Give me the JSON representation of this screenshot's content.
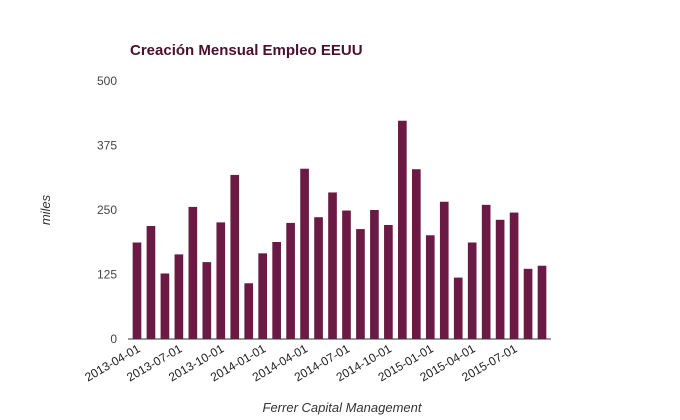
{
  "chart_data": {
    "type": "bar",
    "title": "Creación Mensual Empleo EEUU",
    "ylabel": "miles",
    "xlabel": "Ferrer Capital Management",
    "ylim": [
      0,
      500
    ],
    "yticks": [
      0,
      125,
      250,
      375,
      500
    ],
    "grid": false,
    "bar_color": "#6b1a44",
    "categories": [
      "2013-04-01",
      "2013-05-01",
      "2013-06-01",
      "2013-07-01",
      "2013-08-01",
      "2013-09-01",
      "2013-10-01",
      "2013-11-01",
      "2013-12-01",
      "2014-01-01",
      "2014-02-01",
      "2014-03-01",
      "2014-04-01",
      "2014-05-01",
      "2014-06-01",
      "2014-07-01",
      "2014-08-01",
      "2014-09-01",
      "2014-10-01",
      "2014-11-01",
      "2014-12-01",
      "2015-01-01",
      "2015-02-01",
      "2015-03-01",
      "2015-04-01",
      "2015-05-01",
      "2015-06-01",
      "2015-07-01",
      "2015-08-01",
      "2015-09-01"
    ],
    "values": [
      187,
      219,
      127,
      164,
      256,
      149,
      226,
      318,
      108,
      166,
      188,
      225,
      330,
      236,
      284,
      249,
      213,
      250,
      221,
      423,
      329,
      201,
      266,
      119,
      187,
      260,
      231,
      245,
      136,
      142
    ],
    "tick_labels": [
      "2013-04-01",
      "2013-07-01",
      "2013-10-01",
      "2014-01-01",
      "2014-04-01",
      "2014-07-01",
      "2014-10-01",
      "2015-01-01",
      "2015-04-01",
      "2015-07-01"
    ]
  }
}
